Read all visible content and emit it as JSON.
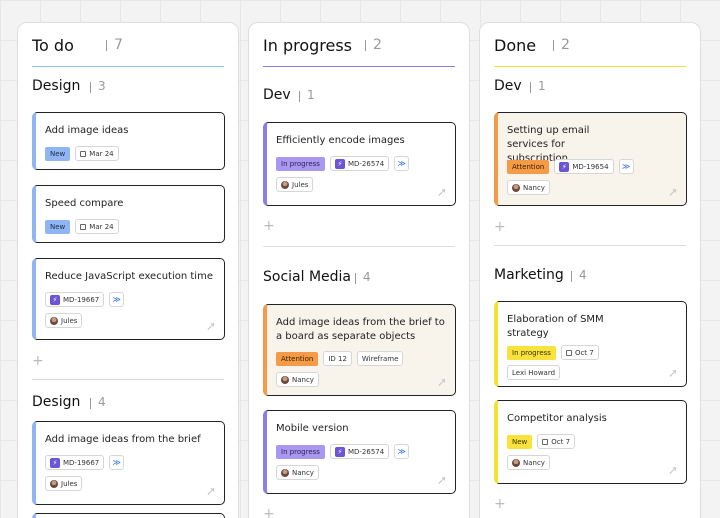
{
  "columns": {
    "todo": {
      "title": "To do",
      "count": "7",
      "groups": [
        {
          "title": "Design",
          "count": "3",
          "add": "+",
          "cards": [
            {
              "title": "Add image ideas",
              "status": "New",
              "date": "Mar 24"
            },
            {
              "title": "Speed compare",
              "status": "New",
              "date": "Mar 24"
            },
            {
              "title": "Reduce JavaScript execution time",
              "issue": "MD-19667",
              "assignee": "Jules"
            }
          ]
        },
        {
          "title": "Design",
          "count": "4",
          "cards": [
            {
              "title": "Add image ideas from the brief",
              "issue": "MD-19667",
              "assignee": "Jules"
            }
          ]
        }
      ]
    },
    "progress": {
      "title": "In progress",
      "count": "2",
      "groups": [
        {
          "title": "Dev",
          "count": "1",
          "add": "+",
          "cards": [
            {
              "title": "Efficiently encode images",
              "status": "In progress",
              "issue": "MD-26574",
              "assignee": "Jules"
            }
          ]
        },
        {
          "title": "Social Media",
          "count": "4",
          "add": "+",
          "cards": [
            {
              "title": "Add image ideas from the brief to a board as separate objects",
              "status": "Attention",
              "id": "ID 12",
              "tag": "Wireframe",
              "assignee": "Nancy"
            },
            {
              "title": "Mobile version",
              "status": "In progress",
              "issue": "MD-26574",
              "assignee": "Nancy"
            }
          ]
        }
      ]
    },
    "done": {
      "title": "Done",
      "count": "2",
      "groups": [
        {
          "title": "Dev",
          "count": "1",
          "add": "+",
          "cards": [
            {
              "title": "Setting up email services for subscription",
              "status": "Attention",
              "issue": "MD-19654",
              "assignee": "Nancy"
            }
          ]
        },
        {
          "title": "Marketing",
          "count": "4",
          "add": "+",
          "cards": [
            {
              "title": "Elaboration of SMM strategy",
              "status": "In progress",
              "date": "Oct 7",
              "assignee": "Lexi Howard"
            },
            {
              "title": "Competitor analysis",
              "status": "New",
              "date": "Oct 7",
              "assignee": "Nancy"
            }
          ]
        }
      ]
    }
  },
  "icons": {
    "calendar": "calendar-icon",
    "issue": "jira-icon",
    "priority": "priority-chevrons-icon",
    "corner": "move-arrow-icon"
  },
  "colors": {
    "new": "#8fb6f2",
    "in_progress": "#a997f0",
    "attention": "#f59a47",
    "yellow_new": "#f9e23c",
    "todo_underline": "#8fc9e6",
    "progress_underline": "#8c7ee8",
    "done_underline": "#f6e133"
  }
}
